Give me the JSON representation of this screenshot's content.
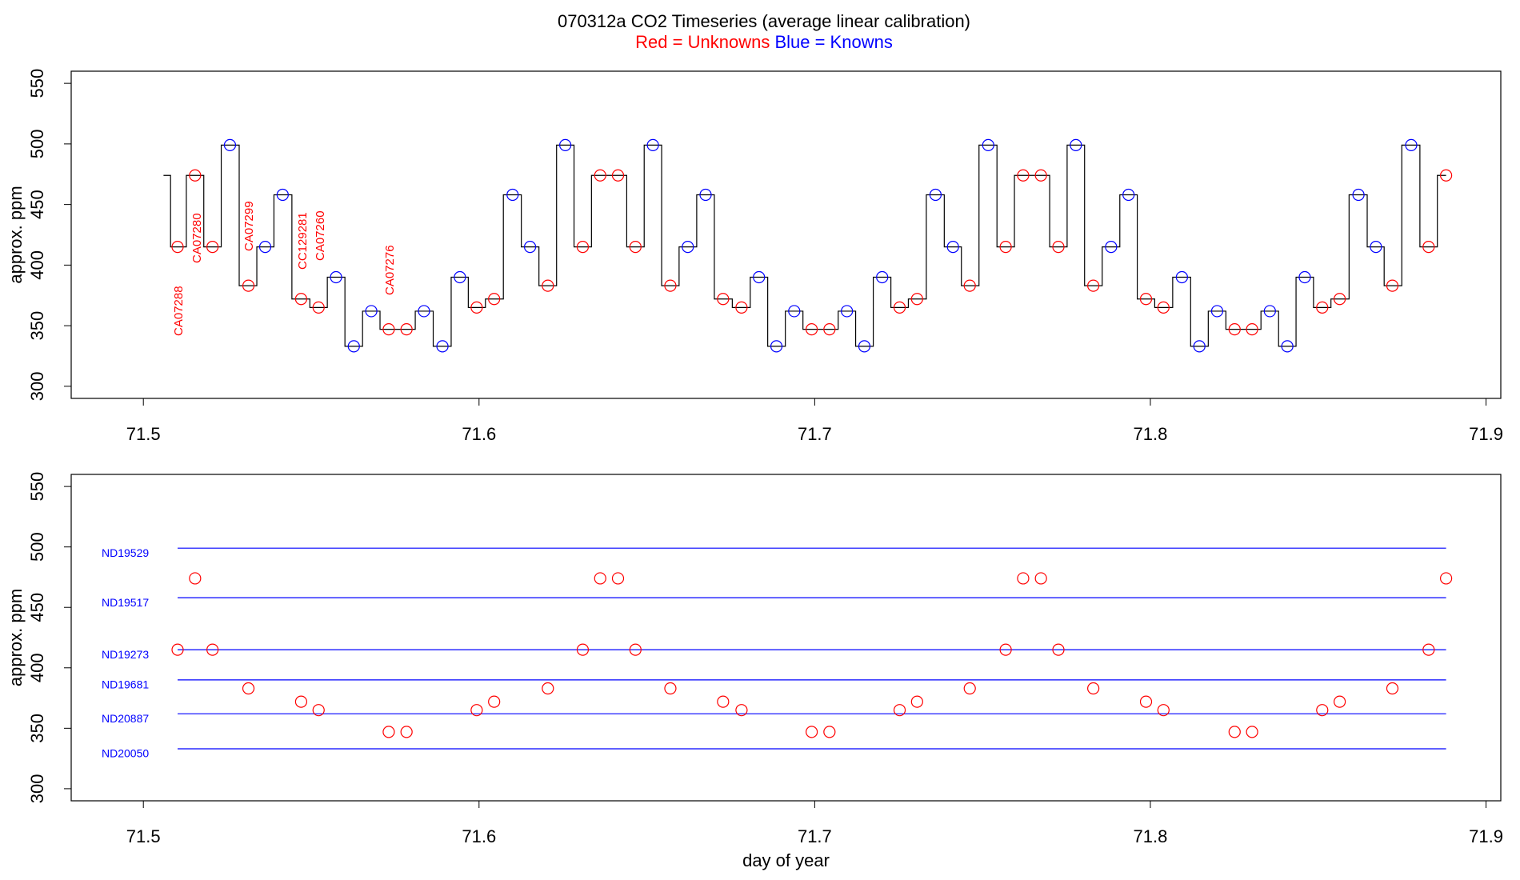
{
  "chart_data": [
    {
      "type": "line",
      "title": "070312a   CO2 Timeseries (average linear calibration)",
      "subtitle": [
        {
          "text": "Red = Unknowns",
          "color": "#ff0000"
        },
        {
          "text": "Blue = Knowns",
          "color": "#0000ff"
        }
      ],
      "ylabel": "approx. ppm",
      "xlim": [
        71.4785,
        71.9044
      ],
      "ylim": [
        290,
        560
      ],
      "xticks": [
        71.5,
        71.6,
        71.7,
        71.8,
        71.9
      ],
      "yticks": [
        300,
        350,
        400,
        450,
        500,
        550
      ],
      "annotations": [
        {
          "text": "CA07288",
          "color": "#ff0000"
        },
        {
          "text": "CA07280",
          "color": "#ff0000"
        },
        {
          "text": "CA07299",
          "color": "#ff0000"
        },
        {
          "text": "CC129281",
          "color": "#ff0000"
        },
        {
          "text": "CA07260",
          "color": "#ff0000"
        },
        {
          "text": "CA07276",
          "color": "#ff0000"
        }
      ],
      "series": [
        {
          "color": "#000000",
          "line": "step",
          "x": [
            71.506,
            71.5102,
            71.5154,
            71.5206,
            71.5258,
            71.5313,
            71.5363,
            71.5415,
            71.547,
            71.5522,
            71.5574,
            71.5627,
            71.5679,
            71.5731,
            71.5784,
            71.5836,
            71.5891,
            71.5943,
            71.5993,
            71.6045,
            71.61,
            71.6152,
            71.6205,
            71.6257,
            71.6309,
            71.6361,
            71.6414,
            71.6466,
            71.6518,
            71.657,
            71.6622,
            71.6675,
            71.6727,
            71.6782,
            71.6834,
            71.6886,
            71.6939,
            71.6991,
            71.7044,
            71.7096,
            71.7148,
            71.7201,
            71.7253,
            71.7305,
            71.736,
            71.7412,
            71.7462,
            71.7517,
            71.7569,
            71.7621,
            71.7674,
            71.7726,
            71.7778,
            71.783,
            71.7883,
            71.7935,
            71.7987,
            71.8039,
            71.8094,
            71.8146,
            71.8199,
            71.8251,
            71.8303,
            71.8356,
            71.8408,
            71.846,
            71.8512,
            71.8564,
            71.862,
            71.8672,
            71.8721,
            71.8777,
            71.8829,
            71.8881
          ],
          "y": [
            474,
            415,
            474,
            415,
            499,
            383,
            415,
            458,
            372,
            365,
            390,
            333,
            362,
            347,
            347,
            362,
            333,
            390,
            365,
            372,
            458,
            415,
            383,
            499,
            415,
            474,
            474,
            415,
            499,
            383,
            415,
            458,
            372,
            365,
            390,
            333,
            362,
            347,
            347,
            362,
            333,
            390,
            365,
            372,
            458,
            415,
            383,
            499,
            415,
            474,
            474,
            415,
            499,
            383,
            415,
            458,
            372,
            365,
            390,
            333,
            362,
            347,
            347,
            362,
            333,
            390,
            365,
            372,
            458,
            415,
            383,
            499,
            415,
            474
          ]
        },
        {
          "color": "#ff0000",
          "marker": "circle",
          "x": [
            71.5102,
            71.5154,
            71.5206,
            71.5313,
            71.547,
            71.5522,
            71.5731,
            71.5784,
            71.5993,
            71.6045,
            71.6205,
            71.6309,
            71.6361,
            71.6414,
            71.6466,
            71.657,
            71.6727,
            71.6782,
            71.6991,
            71.7044,
            71.7253,
            71.7305,
            71.7462,
            71.7569,
            71.7621,
            71.7674,
            71.7726,
            71.783,
            71.7987,
            71.8039,
            71.8251,
            71.8303,
            71.8512,
            71.8564,
            71.8721,
            71.8829,
            71.8881
          ],
          "y": [
            415,
            474,
            415,
            383,
            372,
            365,
            347,
            347,
            365,
            372,
            383,
            415,
            474,
            474,
            415,
            383,
            372,
            365,
            347,
            347,
            365,
            372,
            383,
            415,
            474,
            474,
            415,
            383,
            372,
            365,
            347,
            347,
            365,
            372,
            383,
            415,
            474
          ]
        },
        {
          "color": "#0000ff",
          "marker": "circle",
          "x": [
            71.5258,
            71.5363,
            71.5415,
            71.5574,
            71.5627,
            71.5679,
            71.5836,
            71.5891,
            71.5943,
            71.61,
            71.6152,
            71.6257,
            71.6518,
            71.6622,
            71.6675,
            71.6834,
            71.6886,
            71.6939,
            71.7096,
            71.7148,
            71.7201,
            71.736,
            71.7412,
            71.7517,
            71.7778,
            71.7883,
            71.7935,
            71.8094,
            71.8146,
            71.8199,
            71.8356,
            71.8408,
            71.846,
            71.862,
            71.8672,
            71.8777
          ],
          "y": [
            499,
            415,
            458,
            390,
            333,
            362,
            362,
            333,
            390,
            458,
            415,
            499,
            499,
            415,
            458,
            390,
            333,
            362,
            362,
            333,
            390,
            458,
            415,
            499,
            499,
            415,
            458,
            390,
            333,
            362,
            362,
            333,
            390,
            458,
            415,
            499
          ]
        }
      ]
    },
    {
      "type": "scatter",
      "ylabel": "approx. ppm",
      "xlabel": "day of year",
      "xlim": [
        71.4785,
        71.9044
      ],
      "ylim": [
        290,
        560
      ],
      "xticks": [
        71.5,
        71.6,
        71.7,
        71.8,
        71.9
      ],
      "yticks": [
        300,
        350,
        400,
        450,
        500,
        550
      ],
      "reference_lines": [
        {
          "label": "ND19529",
          "value": 499,
          "color": "#0000ff"
        },
        {
          "label": "ND19517",
          "value": 458,
          "color": "#0000ff"
        },
        {
          "label": "ND19273",
          "value": 415,
          "color": "#0000ff"
        },
        {
          "label": "ND19681",
          "value": 390,
          "color": "#0000ff"
        },
        {
          "label": "ND20887",
          "value": 362,
          "color": "#0000ff"
        },
        {
          "label": "ND20050",
          "value": 333,
          "color": "#0000ff"
        }
      ],
      "series": [
        {
          "color": "#ff0000",
          "marker": "circle",
          "x": [
            71.5102,
            71.5154,
            71.5206,
            71.5313,
            71.547,
            71.5522,
            71.5731,
            71.5784,
            71.5993,
            71.6045,
            71.6205,
            71.6309,
            71.6361,
            71.6414,
            71.6466,
            71.657,
            71.6727,
            71.6782,
            71.6991,
            71.7044,
            71.7253,
            71.7305,
            71.7462,
            71.7569,
            71.7621,
            71.7674,
            71.7726,
            71.783,
            71.7987,
            71.8039,
            71.8251,
            71.8303,
            71.8512,
            71.8564,
            71.8721,
            71.8829,
            71.8881
          ],
          "y": [
            415,
            474,
            415,
            383,
            372,
            365,
            347,
            347,
            365,
            372,
            383,
            415,
            474,
            474,
            415,
            383,
            372,
            365,
            347,
            347,
            365,
            372,
            383,
            415,
            474,
            474,
            415,
            383,
            372,
            365,
            347,
            347,
            365,
            372,
            383,
            415,
            474
          ]
        }
      ]
    }
  ]
}
